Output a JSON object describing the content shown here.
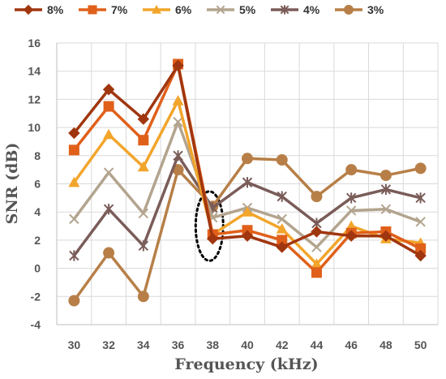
{
  "chart_data": {
    "type": "line",
    "title": "",
    "xlabel": "Frequency (kHz)",
    "ylabel": "SNR (dB)",
    "x": [
      30,
      32,
      34,
      36,
      38,
      40,
      42,
      44,
      46,
      48,
      50
    ],
    "x_tick_labels": [
      "30",
      "32",
      "34",
      "36",
      "38",
      "40",
      "42",
      "44",
      "46",
      "48",
      "50"
    ],
    "ylim": [
      -4,
      16
    ],
    "y_ticks": [
      -4,
      -2,
      0,
      2,
      4,
      6,
      8,
      10,
      12,
      14,
      16
    ],
    "y_tick_labels": [
      "-4",
      "-2",
      "0",
      "2",
      "4",
      "6",
      "8",
      "10",
      "12",
      "14",
      "16"
    ],
    "negative_tick_color": "#ff0000",
    "grid": true,
    "legend_position": "top",
    "highlight": {
      "shape": "dotted-ellipse",
      "x": 38,
      "y_range": [
        1,
        5
      ]
    },
    "series": [
      {
        "name": "8%",
        "color": "#a0360f",
        "marker": "diamond",
        "values": [
          9.6,
          12.7,
          10.6,
          14.4,
          2.1,
          2.3,
          1.5,
          2.6,
          2.3,
          2.3,
          0.9
        ]
      },
      {
        "name": "7%",
        "color": "#e0601a",
        "marker": "square",
        "values": [
          8.4,
          11.5,
          9.1,
          14.5,
          2.4,
          2.7,
          2.0,
          -0.3,
          2.5,
          2.6,
          1.4
        ]
      },
      {
        "name": "6%",
        "color": "#f2a52b",
        "marker": "triangle",
        "values": [
          6.1,
          9.5,
          7.2,
          11.9,
          2.4,
          4.0,
          2.8,
          0.3,
          3.0,
          2.1,
          1.8
        ]
      },
      {
        "name": "5%",
        "color": "#b3a48e",
        "marker": "x",
        "values": [
          3.5,
          6.8,
          3.9,
          10.4,
          3.6,
          4.3,
          3.5,
          1.5,
          4.1,
          4.2,
          3.3
        ]
      },
      {
        "name": "4%",
        "color": "#7a5c59",
        "marker": "star",
        "values": [
          0.9,
          4.2,
          1.6,
          8.0,
          4.3,
          6.1,
          5.1,
          3.2,
          5.0,
          5.6,
          5.0
        ]
      },
      {
        "name": "3%",
        "color": "#b77f47",
        "marker": "circle",
        "values": [
          -2.3,
          1.1,
          -2.0,
          7.0,
          4.4,
          7.8,
          7.7,
          5.1,
          7.0,
          6.6,
          7.1
        ]
      }
    ]
  }
}
